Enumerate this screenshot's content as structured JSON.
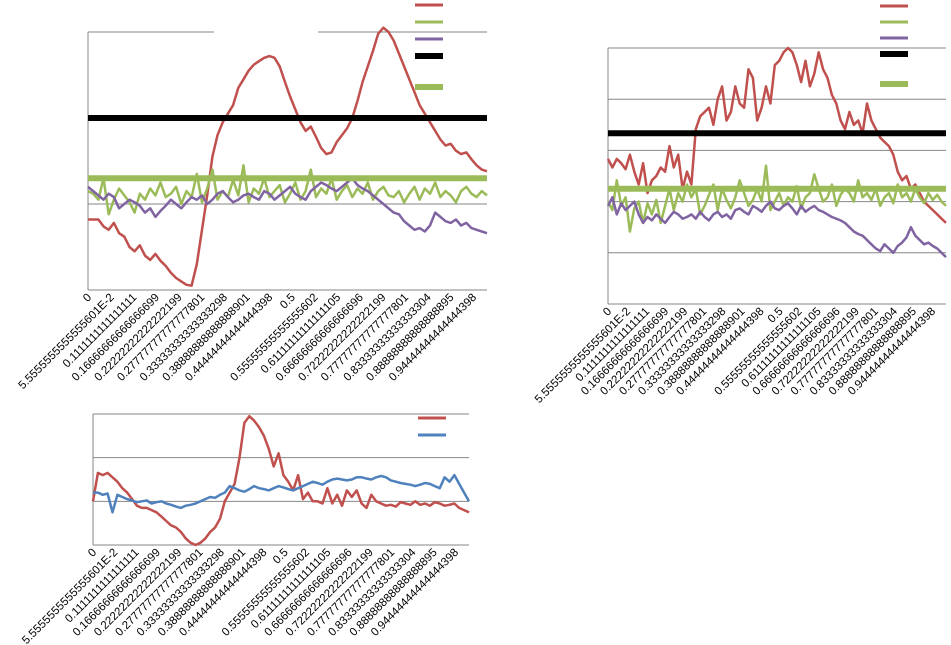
{
  "chart_data": [
    {
      "type": "line",
      "x_tick_labels": [
        "0",
        "5.5555555555555601E-2",
        "0.1111111111111111",
        "0.16666666666666699",
        "0.22222222222222199",
        "0.27777777777777801",
        "0.33333333333333298",
        "0.38888888888888901",
        "0.44444444444444398",
        "0.5",
        "0.55555555555555602",
        "0.61111111111111105",
        "0.66666666666666696",
        "0.72222222222222199",
        "0.77777777777777801",
        "0.83333333333333304",
        "0.88888888888888895",
        "0.94444444444444398"
      ],
      "y_range": [
        0,
        3
      ],
      "grid": true,
      "legend": "top-right",
      "series": [
        {
          "color": "#c0504d",
          "values": [
            0.82,
            0.82,
            0.82,
            0.74,
            0.7,
            0.78,
            0.66,
            0.62,
            0.5,
            0.45,
            0.52,
            0.4,
            0.35,
            0.42,
            0.34,
            0.28,
            0.2,
            0.14,
            0.1,
            0.06,
            0.05,
            0.3,
            0.7,
            1.1,
            1.55,
            1.8,
            1.95,
            2.05,
            2.15,
            2.35,
            2.45,
            2.55,
            2.62,
            2.66,
            2.7,
            2.72,
            2.7,
            2.6,
            2.42,
            2.25,
            2.1,
            1.95,
            1.85,
            1.9,
            1.78,
            1.65,
            1.58,
            1.6,
            1.72,
            1.8,
            1.88,
            2.0,
            2.2,
            2.42,
            2.6,
            2.78,
            2.98,
            3.05,
            3.0,
            2.9,
            2.75,
            2.6,
            2.45,
            2.3,
            2.15,
            2.05,
            1.95,
            1.85,
            1.75,
            1.68,
            1.7,
            1.62,
            1.58,
            1.6,
            1.52,
            1.45,
            1.4,
            1.38
          ]
        },
        {
          "color": "#9bbb59",
          "values": [
            1.15,
            1.12,
            1.05,
            1.3,
            0.88,
            1.05,
            1.18,
            1.1,
            1.02,
            0.9,
            1.12,
            1.05,
            1.18,
            1.1,
            1.25,
            1.08,
            1.12,
            1.2,
            1.0,
            1.15,
            1.08,
            1.35,
            1.02,
            1.18,
            1.4,
            1.05,
            1.15,
            1.08,
            1.28,
            1.1,
            1.45,
            1.02,
            1.18,
            1.12,
            1.3,
            1.08,
            1.15,
            1.22,
            1.02,
            1.12,
            1.25,
            1.05,
            1.15,
            1.4,
            1.08,
            1.18,
            1.12,
            1.3,
            1.05,
            1.15,
            1.22,
            1.08,
            1.18,
            1.12,
            1.25,
            1.05,
            1.15,
            1.2,
            1.1,
            1.08,
            1.15,
            1.02,
            1.12,
            1.2,
            1.05,
            1.18,
            1.12,
            1.25,
            1.08,
            1.15,
            1.1,
            1.02,
            1.15,
            1.2,
            1.12,
            1.08,
            1.15,
            1.1
          ]
        },
        {
          "color": "#8064a2",
          "values": [
            1.2,
            1.15,
            1.1,
            1.05,
            1.12,
            1.08,
            0.95,
            1.0,
            1.05,
            1.02,
            0.98,
            0.9,
            0.95,
            0.85,
            0.92,
            0.98,
            1.05,
            1.0,
            0.95,
            1.02,
            1.08,
            1.05,
            1.1,
            1.0,
            1.05,
            1.12,
            1.15,
            1.08,
            1.02,
            1.05,
            1.1,
            1.12,
            1.08,
            1.05,
            1.15,
            1.12,
            1.05,
            1.1,
            1.15,
            1.2,
            1.12,
            1.08,
            1.05,
            1.15,
            1.2,
            1.25,
            1.22,
            1.18,
            1.15,
            1.2,
            1.25,
            1.3,
            1.22,
            1.18,
            1.15,
            1.1,
            1.05,
            1.0,
            0.95,
            0.9,
            0.88,
            0.8,
            0.75,
            0.7,
            0.72,
            0.68,
            0.75,
            0.9,
            0.85,
            0.8,
            0.78,
            0.82,
            0.75,
            0.78,
            0.72,
            0.7,
            0.68,
            0.66
          ]
        },
        {
          "color": "#000000",
          "values": [
            2.0,
            2.0
          ]
        },
        {
          "color": "#9bbb59",
          "values": [
            1.3,
            1.3
          ]
        }
      ]
    },
    {
      "type": "line",
      "x_tick_labels": [
        "0",
        "5.5555555555555601E-2",
        "0.1111111111111111",
        "0.16666666666666699",
        "0.22222222222222199",
        "0.27777777777777801",
        "0.33333333333333298",
        "0.38888888888888901",
        "0.44444444444444398",
        "0.5",
        "0.55555555555555602",
        "0.61111111111111105",
        "0.66666666666666696",
        "0.72222222222222199",
        "0.77777777777777801",
        "0.83333333333333304",
        "0.88888888888888895",
        "0.94444444444444398"
      ],
      "y_range": [
        0,
        3
      ],
      "grid": true,
      "legend": "top-right",
      "series": [
        {
          "color": "#c0504d",
          "values": [
            1.7,
            1.6,
            1.7,
            1.65,
            1.58,
            1.75,
            1.55,
            1.4,
            1.65,
            1.3,
            1.45,
            1.5,
            1.6,
            1.55,
            1.85,
            1.6,
            1.75,
            1.35,
            1.55,
            1.4,
            2.05,
            2.2,
            2.25,
            2.3,
            2.1,
            2.4,
            2.55,
            2.15,
            2.25,
            2.55,
            2.35,
            2.3,
            2.75,
            2.65,
            2.15,
            2.3,
            2.55,
            2.35,
            2.8,
            2.85,
            2.95,
            3.0,
            2.95,
            2.8,
            2.6,
            2.85,
            2.55,
            2.7,
            2.95,
            2.75,
            2.65,
            2.45,
            2.35,
            2.15,
            2.05,
            2.25,
            2.1,
            2.15,
            2.0,
            2.35,
            2.15,
            2.05,
            1.95,
            1.9,
            1.85,
            1.75,
            1.55,
            1.45,
            1.5,
            1.35,
            1.4,
            1.3,
            1.2,
            1.15,
            1.1,
            1.05,
            1.0,
            0.95
          ]
        },
        {
          "color": "#9bbb59",
          "values": [
            1.2,
            1.1,
            1.45,
            1.15,
            1.25,
            0.85,
            1.12,
            1.2,
            0.95,
            1.18,
            1.05,
            1.22,
            0.95,
            1.15,
            1.35,
            1.1,
            1.3,
            1.2,
            1.4,
            1.25,
            1.35,
            1.05,
            1.15,
            1.28,
            1.4,
            1.1,
            1.35,
            1.22,
            1.12,
            1.25,
            1.45,
            1.3,
            1.15,
            1.22,
            1.35,
            1.2,
            1.62,
            1.1,
            1.2,
            1.3,
            1.15,
            1.25,
            1.2,
            1.38,
            1.12,
            1.25,
            1.3,
            1.52,
            1.35,
            1.2,
            1.25,
            1.4,
            1.15,
            1.28,
            1.35,
            1.3,
            1.2,
            1.45,
            1.25,
            1.3,
            1.22,
            1.35,
            1.15,
            1.25,
            1.3,
            1.18,
            1.4,
            1.25,
            1.3,
            1.2,
            1.35,
            1.25,
            1.18,
            1.3,
            1.22,
            1.28,
            1.2,
            1.15
          ]
        },
        {
          "color": "#8064a2",
          "values": [
            1.15,
            1.25,
            1.05,
            1.18,
            1.1,
            1.15,
            1.2,
            1.05,
            0.95,
            1.02,
            0.98,
            1.05,
            1.0,
            0.95,
            1.02,
            1.08,
            1.05,
            1.0,
            1.02,
            1.05,
            1.0,
            1.08,
            1.02,
            0.98,
            1.05,
            1.08,
            1.02,
            1.05,
            1.0,
            1.1,
            1.12,
            1.08,
            1.05,
            1.15,
            1.12,
            1.08,
            1.15,
            1.2,
            1.12,
            1.1,
            1.15,
            1.18,
            1.12,
            1.05,
            1.15,
            1.08,
            1.12,
            1.15,
            1.1,
            1.08,
            1.05,
            1.02,
            1.0,
            0.98,
            0.95,
            0.9,
            0.85,
            0.82,
            0.8,
            0.75,
            0.7,
            0.65,
            0.62,
            0.7,
            0.65,
            0.6,
            0.68,
            0.72,
            0.78,
            0.9,
            0.8,
            0.75,
            0.7,
            0.72,
            0.68,
            0.65,
            0.6,
            0.55
          ]
        },
        {
          "color": "#000000",
          "values": [
            2.0,
            2.0
          ]
        },
        {
          "color": "#9bbb59",
          "values": [
            1.35,
            1.35
          ]
        }
      ]
    },
    {
      "type": "line",
      "x_tick_labels": [
        "0",
        "5.5555555555555601E-2",
        "0.1111111111111111",
        "0.16666666666666699",
        "0.22222222222222199",
        "0.27777777777777801",
        "0.33333333333333298",
        "0.38888888888888901",
        "0.44444444444444398",
        "0.5",
        "0.55555555555555602",
        "0.61111111111111105",
        "0.66666666666666696",
        "0.72222222222222199",
        "0.77777777777777801",
        "0.83333333333333304",
        "0.88888888888888895",
        "0.94444444444444398"
      ],
      "y_range": [
        0,
        3
      ],
      "grid": true,
      "legend": "top-right",
      "series": [
        {
          "color": "#c0504d",
          "values": [
            1.0,
            1.65,
            1.6,
            1.65,
            1.55,
            1.45,
            1.3,
            1.2,
            1.05,
            0.9,
            0.85,
            0.85,
            0.8,
            0.75,
            0.65,
            0.55,
            0.45,
            0.4,
            0.3,
            0.15,
            0.05,
            0.0,
            0.05,
            0.15,
            0.3,
            0.4,
            0.6,
            1.0,
            1.2,
            1.4,
            2.0,
            2.8,
            2.95,
            2.85,
            2.7,
            2.5,
            2.2,
            1.8,
            2.1,
            1.6,
            1.45,
            1.25,
            1.6,
            1.05,
            1.2,
            1.0,
            1.0,
            0.95,
            1.3,
            0.95,
            1.15,
            0.9,
            1.25,
            1.1,
            1.25,
            0.95,
            0.85,
            1.15,
            1.0,
            0.95,
            0.9,
            0.92,
            0.88,
            0.98,
            0.95,
            0.92,
            1.0,
            0.92,
            0.95,
            0.9,
            0.98,
            0.95,
            0.9,
            0.92,
            0.95,
            0.85,
            0.8,
            0.75
          ]
        },
        {
          "color": "#4f81bd",
          "values": [
            1.2,
            1.2,
            1.15,
            1.18,
            0.75,
            1.15,
            1.1,
            1.05,
            1.02,
            0.98,
            1.0,
            1.02,
            0.95,
            0.98,
            1.0,
            0.95,
            0.92,
            0.88,
            0.85,
            0.9,
            0.92,
            0.95,
            1.0,
            1.05,
            1.1,
            1.08,
            1.15,
            1.2,
            1.35,
            1.3,
            1.25,
            1.22,
            1.28,
            1.35,
            1.3,
            1.28,
            1.25,
            1.3,
            1.35,
            1.32,
            1.28,
            1.25,
            1.3,
            1.35,
            1.4,
            1.45,
            1.42,
            1.38,
            1.45,
            1.5,
            1.52,
            1.5,
            1.48,
            1.5,
            1.55,
            1.55,
            1.52,
            1.5,
            1.55,
            1.58,
            1.55,
            1.48,
            1.45,
            1.42,
            1.4,
            1.38,
            1.35,
            1.38,
            1.42,
            1.4,
            1.35,
            1.3,
            1.55,
            1.45,
            1.6,
            1.4,
            1.2,
            1.0
          ]
        }
      ]
    }
  ]
}
